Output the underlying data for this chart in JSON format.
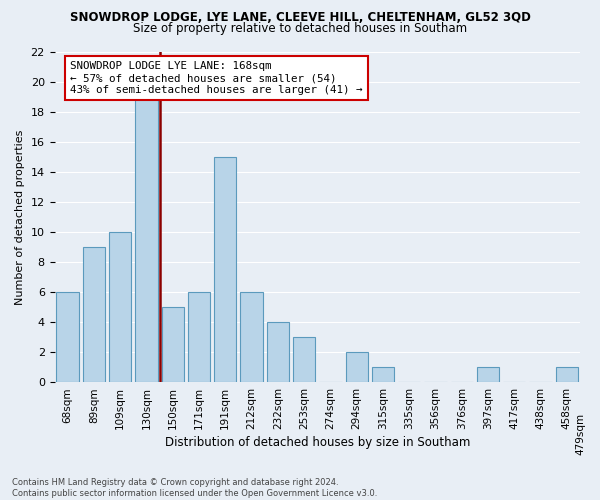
{
  "title": "SNOWDROP LODGE, LYE LANE, CLEEVE HILL, CHELTENHAM, GL52 3QD",
  "subtitle": "Size of property relative to detached houses in Southam",
  "xlabel": "Distribution of detached houses by size in Southam",
  "ylabel": "Number of detached properties",
  "footer_line1": "Contains HM Land Registry data © Crown copyright and database right 2024.",
  "footer_line2": "Contains public sector information licensed under the Open Government Licence v3.0.",
  "bin_labels": [
    "68sqm",
    "89sqm",
    "109sqm",
    "130sqm",
    "150sqm",
    "171sqm",
    "191sqm",
    "212sqm",
    "232sqm",
    "253sqm",
    "274sqm",
    "294sqm",
    "315sqm",
    "335sqm",
    "356sqm",
    "376sqm",
    "397sqm",
    "417sqm",
    "438sqm",
    "458sqm",
    "479sqm"
  ],
  "bar_heights": [
    6,
    9,
    10,
    19,
    5,
    6,
    15,
    6,
    4,
    3,
    0,
    2,
    1,
    0,
    0,
    0,
    1,
    0,
    0,
    1
  ],
  "bar_color": "#b8d4e8",
  "bar_edge_color": "#5b9abd",
  "ylim": [
    0,
    22
  ],
  "yticks": [
    0,
    2,
    4,
    6,
    8,
    10,
    12,
    14,
    16,
    18,
    20,
    22
  ],
  "annotation_title": "SNOWDROP LODGE LYE LANE: 168sqm",
  "annotation_line1": "← 57% of detached houses are smaller (54)",
  "annotation_line2": "43% of semi-detached houses are larger (41) →",
  "vline_color": "#8b0000",
  "annotation_box_color": "#ffffff",
  "annotation_box_edge_color": "#cc0000",
  "bg_color": "#e8eef5",
  "grid_color": "#ffffff"
}
